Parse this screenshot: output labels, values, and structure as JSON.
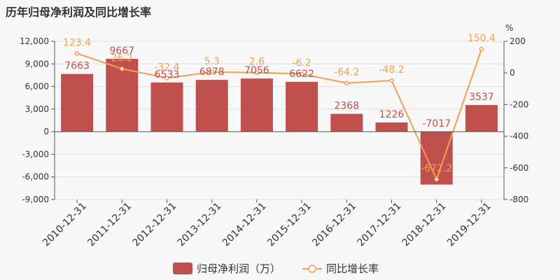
{
  "title": "历年归母净利润及同比增长率",
  "colors": {
    "bar": "#c0504d",
    "line": "#f0a050",
    "axis": "#555555",
    "grid": "#e0e0e0"
  },
  "chart_data": {
    "type": "bar",
    "categories": [
      "2010-12-31",
      "2011-12-31",
      "2012-12-31",
      "2013-12-31",
      "2014-12-31",
      "2015-12-31",
      "2016-12-31",
      "2017-12-31",
      "2018-12-31",
      "2019-12-31"
    ],
    "series": [
      {
        "name": "归母净利润（万）",
        "type": "bar",
        "axis": "left",
        "values": [
          7663,
          9667,
          6533,
          6878,
          7056,
          6622,
          2368,
          1226,
          -7017,
          3537
        ]
      },
      {
        "name": "同比增长率",
        "type": "line",
        "axis": "right",
        "values": [
          123.4,
          26.2,
          -32.4,
          5.3,
          2.6,
          -6.2,
          -64.2,
          -48.2,
          -672.2,
          150.4
        ]
      }
    ],
    "y_left": {
      "ylim": [
        -9000,
        12000
      ],
      "ticks": [
        12000,
        9000,
        6000,
        3000,
        0,
        -3000,
        -6000,
        -9000
      ],
      "tick_labels": [
        "12,000",
        "9,000",
        "6,000",
        "3,000",
        "0",
        "-3,000",
        "-6,000",
        "-9,000"
      ]
    },
    "y_right": {
      "label": "%",
      "ylim": [
        -800,
        200
      ],
      "ticks": [
        200,
        0,
        -200,
        -400,
        -600,
        -800
      ],
      "tick_labels": [
        "200",
        "0",
        "-200",
        "-400",
        "-600",
        "-800"
      ]
    },
    "legend": {
      "position": "bottom-center"
    }
  }
}
